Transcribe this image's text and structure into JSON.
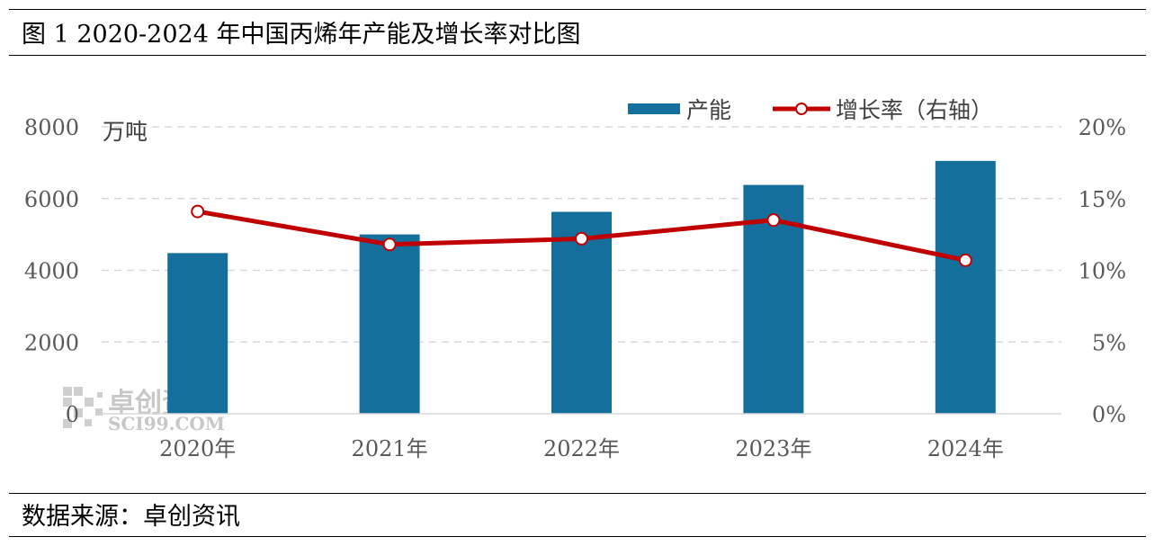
{
  "figure": {
    "title": "图 1 2020-2024 年中国丙烯年产能及增长率对比图",
    "source": "数据来源：卓创资讯"
  },
  "watermark": {
    "name": "卓创资讯",
    "domain": "SCI99.COM"
  },
  "colors": {
    "bar": "#156f9d",
    "line": "#c00000",
    "grid": "#d9d9d9"
  },
  "chart_data": {
    "type": "bar",
    "categories": [
      "2020年",
      "2021年",
      "2022年",
      "2023年",
      "2024年"
    ],
    "series": [
      {
        "name": "产能",
        "type": "bar",
        "axis": "left",
        "values": [
          4480,
          5000,
          5630,
          6380,
          7050
        ]
      },
      {
        "name": "增长率（右轴）",
        "type": "line",
        "axis": "right",
        "values": [
          14.1,
          11.8,
          12.2,
          13.5,
          10.7
        ]
      }
    ],
    "y_left": {
      "unit": "万吨",
      "ylim": [
        0,
        8000
      ],
      "ticks": [
        "0",
        "2000",
        "4000",
        "6000",
        "8000"
      ]
    },
    "y_right": {
      "ylim": [
        0,
        20
      ],
      "ticks": [
        "0%",
        "5%",
        "10%",
        "15%",
        "20%"
      ]
    },
    "grid": true,
    "legend_position": "top-right"
  }
}
